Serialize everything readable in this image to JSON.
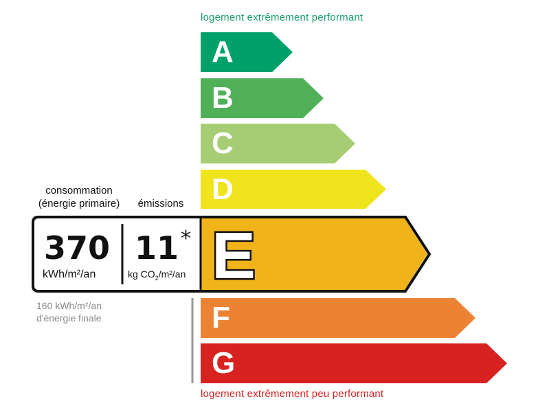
{
  "top_caption": "logement extrêmement performant",
  "bottom_caption": "logement extrêmement peu performant",
  "colors": {
    "top_caption": "#1a9e6a",
    "bottom_caption": "#d7221f",
    "A": "#00a06b",
    "B": "#50b058",
    "C": "#a6cd74",
    "D": "#f0e41c",
    "E": "#f0b31a",
    "F": "#ec8234",
    "G": "#d7221f"
  },
  "classes": [
    {
      "letter": "A"
    },
    {
      "letter": "B"
    },
    {
      "letter": "C"
    },
    {
      "letter": "D"
    },
    {
      "letter": "E"
    },
    {
      "letter": "F"
    },
    {
      "letter": "G"
    }
  ],
  "current_class": "E",
  "consumption": {
    "label_line1": "consommation",
    "label_line2": "(énergie primaire)",
    "value": "370",
    "unit": "kWh/m²/an"
  },
  "emissions": {
    "label": "émissions",
    "value": "11",
    "asterisk": "*",
    "unit_prefix": "kg CO",
    "unit_sub": "2",
    "unit_suffix": "/m²/an"
  },
  "final_energy": {
    "line1": "160 kWh/m²/an",
    "line2": "d'énergie finale"
  }
}
